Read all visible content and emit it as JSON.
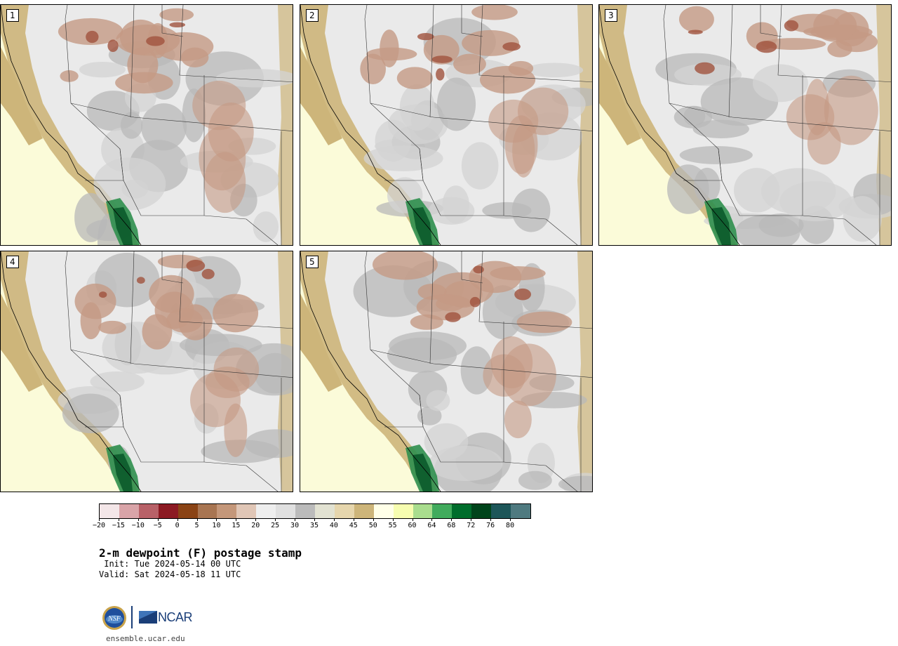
{
  "panels": [
    {
      "label": "1"
    },
    {
      "label": "2"
    },
    {
      "label": "3"
    },
    {
      "label": "4"
    },
    {
      "label": "5"
    }
  ],
  "colorbar": {
    "colors": [
      "#f3e6e8",
      "#d9a4a8",
      "#b86168",
      "#8c1a23",
      "#8a4315",
      "#a87552",
      "#c4977a",
      "#e0c6b6",
      "#eeeeee",
      "#e0e0e0",
      "#bbbbbb",
      "#e2e2d2",
      "#e6d6ad",
      "#cdb57a",
      "#ffffe8",
      "#f6fdb0",
      "#a9dd8e",
      "#41ab5d",
      "#006d2c",
      "#00441b",
      "#1d5659",
      "#4f7a80"
    ],
    "tick_labels": [
      "−20",
      "−15",
      "−10",
      "−5",
      "0",
      "5",
      "10",
      "15",
      "20",
      "25",
      "30",
      "35",
      "40",
      "45",
      "50",
      "55",
      "60",
      "64",
      "68",
      "72",
      "76",
      "80"
    ]
  },
  "title": "2-m dewpoint (F) postage stamp",
  "init_text": " Init: Tue 2024-05-14 00 UTC",
  "valid_text": "Valid: Sat 2024-05-18 11 UTC",
  "logos": {
    "nsf": "NSF",
    "ncar": "NCAR"
  },
  "footer_url": "ensemble.ucar.edu",
  "palette": {
    "ocean": "#fbfbd9",
    "coastal": "#cdb57a",
    "land_light": "#eaeaea",
    "land_mid": "#d3d3d3",
    "land_dark": "#b8b8b8",
    "dry_brown": "#c49a84",
    "dry_dark": "#a0523d",
    "green": "#2f8f4e",
    "green_dark": "#0b5a2b"
  }
}
